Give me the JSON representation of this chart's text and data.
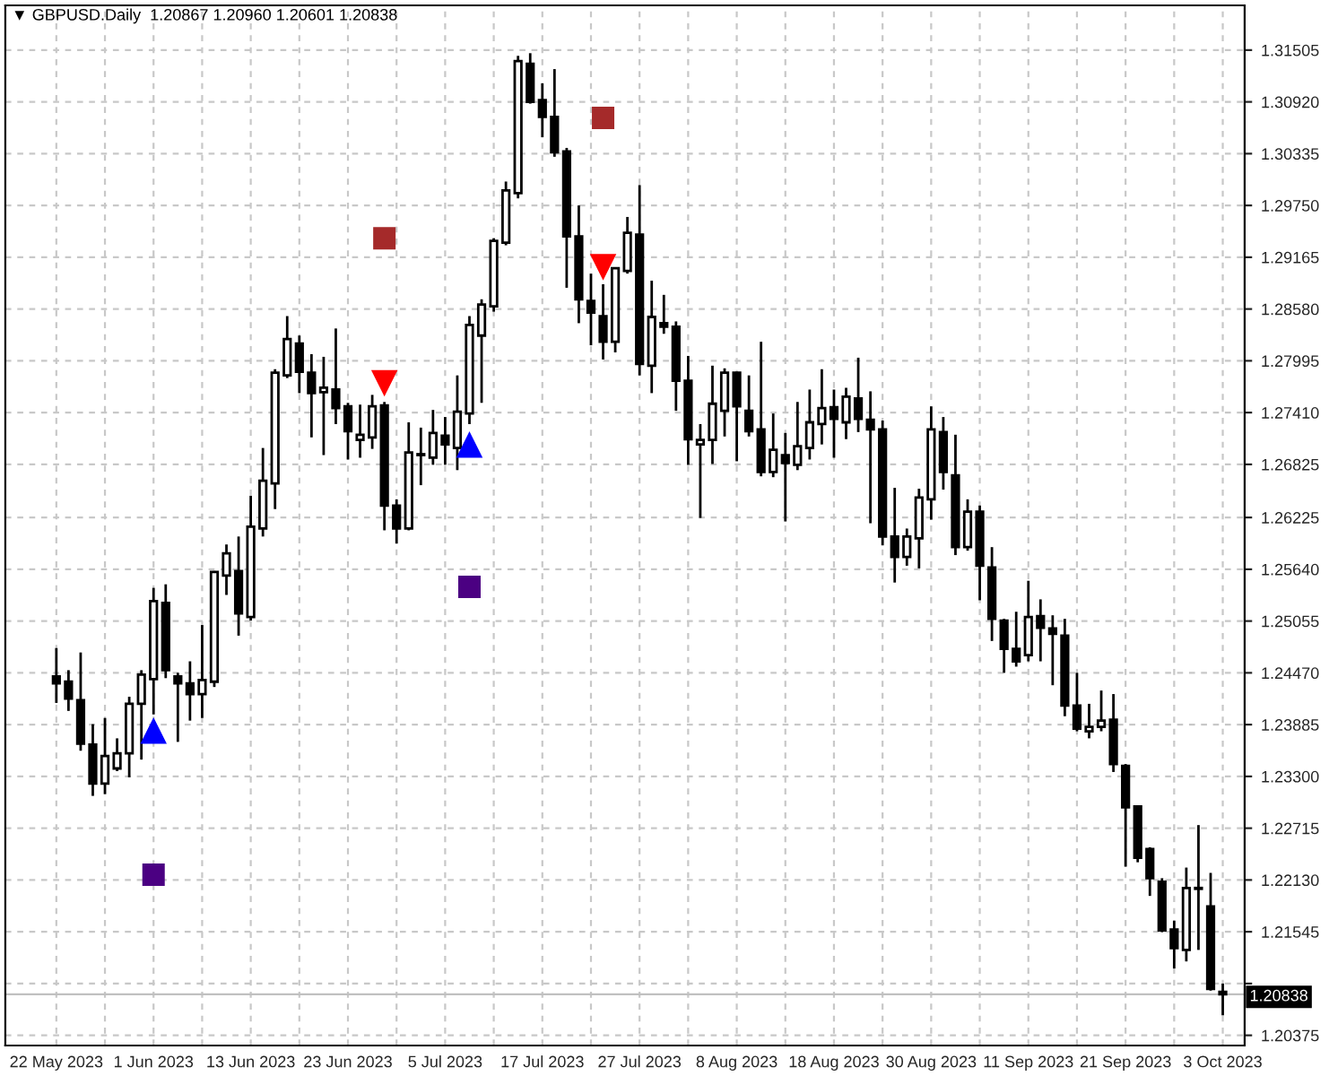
{
  "chart_data": {
    "type": "candlestick",
    "title": "▼ GBPUSD.Daily  1.20867 1.20960 1.20601 1.20838",
    "categories": [
      "22 May 2023",
      null,
      null,
      null,
      null,
      null,
      null,
      null,
      "1 Jun 2023",
      null,
      null,
      null,
      null,
      null,
      null,
      null,
      "13 Jun 2023",
      null,
      null,
      null,
      null,
      null,
      null,
      null,
      "23 Jun 2023",
      null,
      null,
      null,
      null,
      null,
      null,
      null,
      "5 Jul 2023",
      null,
      null,
      null,
      null,
      null,
      null,
      null,
      "17 Jul 2023",
      null,
      null,
      null,
      null,
      null,
      null,
      null,
      "27 Jul 2023",
      null,
      null,
      null,
      null,
      null,
      null,
      null,
      "8 Aug 2023",
      null,
      null,
      null,
      null,
      null,
      null,
      null,
      "18 Aug 2023",
      null,
      null,
      null,
      null,
      null,
      null,
      null,
      "30 Aug 2023",
      null,
      null,
      null,
      null,
      null,
      null,
      null,
      "11 Sep 2023",
      null,
      null,
      null,
      null,
      null,
      null,
      null,
      "21 Sep 2023",
      null,
      null,
      null,
      null,
      null,
      null,
      null,
      "3 Oct 2023"
    ],
    "ohlc": [
      [
        1.2443,
        1.2475,
        1.2413,
        1.2435
      ],
      [
        1.2437,
        1.245,
        1.2404,
        1.2418
      ],
      [
        1.2416,
        1.247,
        1.2359,
        1.2367
      ],
      [
        1.2366,
        1.2389,
        1.2308,
        1.2322
      ],
      [
        1.2322,
        1.2396,
        1.231,
        1.2353
      ],
      [
        1.2339,
        1.2373,
        1.2336,
        1.2356
      ],
      [
        1.2356,
        1.242,
        1.2329,
        1.2412
      ],
      [
        1.2412,
        1.245,
        1.2349,
        1.2445
      ],
      [
        1.244,
        1.2543,
        1.24,
        1.2528
      ],
      [
        1.2526,
        1.2547,
        1.2441,
        1.245
      ],
      [
        1.2443,
        1.2447,
        1.2369,
        1.2435
      ],
      [
        1.2435,
        1.246,
        1.2393,
        1.2423
      ],
      [
        1.2423,
        1.2501,
        1.2396,
        1.2439
      ],
      [
        1.2437,
        1.2562,
        1.2431,
        1.2561
      ],
      [
        1.2557,
        1.2592,
        1.2535,
        1.2582
      ],
      [
        1.2562,
        1.2601,
        1.2489,
        1.2514
      ],
      [
        1.251,
        1.2647,
        1.2506,
        1.2612
      ],
      [
        1.261,
        1.2701,
        1.2601,
        1.2664
      ],
      [
        1.2661,
        1.279,
        1.2632,
        1.2786
      ],
      [
        1.2783,
        1.285,
        1.278,
        1.2824
      ],
      [
        1.2819,
        1.2828,
        1.2763,
        1.2787
      ],
      [
        1.2786,
        1.2807,
        1.2713,
        1.2763
      ],
      [
        1.2764,
        1.2804,
        1.2693,
        1.2769
      ],
      [
        1.2767,
        1.2836,
        1.2728,
        1.2746
      ],
      [
        1.2748,
        1.2752,
        1.2688,
        1.272
      ],
      [
        1.271,
        1.275,
        1.269,
        1.2716
      ],
      [
        1.2713,
        1.2761,
        1.27,
        1.2748
      ],
      [
        1.2749,
        1.2753,
        1.2608,
        1.2636
      ],
      [
        1.2636,
        1.2643,
        1.2593,
        1.261
      ],
      [
        1.261,
        1.273,
        1.2608,
        1.2696
      ],
      [
        1.2693,
        1.2724,
        1.2659,
        1.2694
      ],
      [
        1.269,
        1.2744,
        1.2682,
        1.2718
      ],
      [
        1.2715,
        1.2736,
        1.2682,
        1.2705
      ],
      [
        1.2701,
        1.2783,
        1.2676,
        1.2742
      ],
      [
        1.274,
        1.285,
        1.2728,
        1.284
      ],
      [
        1.2828,
        1.2869,
        1.2752,
        1.2863
      ],
      [
        1.2861,
        1.2938,
        1.2855,
        1.2935
      ],
      [
        1.2933,
        1.3002,
        1.293,
        1.2992
      ],
      [
        1.2989,
        1.3144,
        1.2983,
        1.3138
      ],
      [
        1.3135,
        1.3147,
        1.309,
        1.3092
      ],
      [
        1.3094,
        1.3113,
        1.3052,
        1.3075
      ],
      [
        1.3075,
        1.3129,
        1.303,
        1.3035
      ],
      [
        1.3036,
        1.304,
        1.2882,
        1.294
      ],
      [
        1.294,
        1.2975,
        1.2842,
        1.2869
      ],
      [
        1.2867,
        1.2898,
        1.2817,
        1.2854
      ],
      [
        1.285,
        1.2886,
        1.2801,
        1.2821
      ],
      [
        1.2821,
        1.2905,
        1.2809,
        1.2904
      ],
      [
        1.2901,
        1.2962,
        1.2898,
        1.2944
      ],
      [
        1.2942,
        1.2998,
        1.2783,
        1.2796
      ],
      [
        1.2794,
        1.289,
        1.2763,
        1.2849
      ],
      [
        1.2842,
        1.2874,
        1.283,
        1.2838
      ],
      [
        1.2838,
        1.2844,
        1.2743,
        1.2777
      ],
      [
        1.2777,
        1.2805,
        1.2682,
        1.2711
      ],
      [
        1.2705,
        1.2728,
        1.2622,
        1.271
      ],
      [
        1.271,
        1.2794,
        1.2683,
        1.2751
      ],
      [
        1.2743,
        1.2791,
        1.2714,
        1.2786
      ],
      [
        1.2786,
        1.2787,
        1.2686,
        1.2748
      ],
      [
        1.2743,
        1.2783,
        1.2714,
        1.272
      ],
      [
        1.2722,
        1.2821,
        1.2669,
        1.2674
      ],
      [
        1.2674,
        1.274,
        1.2668,
        1.2699
      ],
      [
        1.2693,
        1.2718,
        1.2618,
        1.2684
      ],
      [
        1.2682,
        1.2753,
        1.2676,
        1.2703
      ],
      [
        1.2701,
        1.2767,
        1.2688,
        1.273
      ],
      [
        1.2728,
        1.279,
        1.2705,
        1.2746
      ],
      [
        1.2747,
        1.2767,
        1.269,
        1.2734
      ],
      [
        1.273,
        1.2769,
        1.2711,
        1.2759
      ],
      [
        1.2757,
        1.2803,
        1.2719,
        1.2734
      ],
      [
        1.2733,
        1.2765,
        1.2616,
        1.2722
      ],
      [
        1.2722,
        1.2732,
        1.2591,
        1.2601
      ],
      [
        1.2601,
        1.2656,
        1.2549,
        1.2578
      ],
      [
        1.2578,
        1.261,
        1.2568,
        1.2601
      ],
      [
        1.2599,
        1.2655,
        1.2565,
        1.2645
      ],
      [
        1.2643,
        1.2748,
        1.262,
        1.2722
      ],
      [
        1.2719,
        1.2736,
        1.2654,
        1.2674
      ],
      [
        1.267,
        1.2716,
        1.258,
        1.2589
      ],
      [
        1.2589,
        1.2643,
        1.2585,
        1.2629
      ],
      [
        1.2629,
        1.2636,
        1.2529,
        1.2568
      ],
      [
        1.2566,
        1.2589,
        1.2483,
        1.2508
      ],
      [
        1.2506,
        1.2508,
        1.2447,
        1.2474
      ],
      [
        1.2474,
        1.2516,
        1.2454,
        1.246
      ],
      [
        1.2467,
        1.2551,
        1.246,
        1.251
      ],
      [
        1.2511,
        1.253,
        1.246,
        1.2498
      ],
      [
        1.2497,
        1.2512,
        1.2433,
        1.2491
      ],
      [
        1.2489,
        1.2508,
        1.2398,
        1.241
      ],
      [
        1.241,
        1.2447,
        1.2381,
        1.2384
      ],
      [
        1.2381,
        1.2412,
        1.2373,
        1.2386
      ],
      [
        1.2386,
        1.2427,
        1.2381,
        1.2393
      ],
      [
        1.2394,
        1.2423,
        1.2335,
        1.2344
      ],
      [
        1.2342,
        1.2344,
        1.2228,
        1.2295
      ],
      [
        1.2296,
        1.2297,
        1.2233,
        1.2238
      ],
      [
        1.2248,
        1.225,
        1.2195,
        1.2215
      ],
      [
        1.2211,
        1.2215,
        1.2154,
        1.2156
      ],
      [
        1.2157,
        1.2167,
        1.2113,
        1.2136
      ],
      [
        1.2134,
        1.2227,
        1.2121,
        1.2204
      ],
      [
        1.2203,
        1.2275,
        1.2134,
        1.2204
      ],
      [
        1.2183,
        1.2221,
        1.2088,
        1.209
      ],
      [
        1.20867,
        1.2096,
        1.20601,
        1.20838
      ]
    ],
    "series": [
      {
        "type": "scatter",
        "marker": "triangle",
        "color": "#0000ff",
        "values": [
          null,
          null,
          null,
          null,
          null,
          null,
          null,
          null,
          1.2381,
          null,
          null,
          null,
          null,
          null,
          null,
          null,
          null,
          null,
          null,
          null,
          null,
          null,
          null,
          null,
          null,
          null,
          null,
          null,
          null,
          null,
          null,
          null,
          null,
          null,
          1.2704,
          null,
          null,
          null,
          null,
          null,
          null,
          null,
          null,
          null,
          null,
          null,
          null,
          null,
          null,
          null,
          null,
          null,
          null,
          null,
          null,
          null,
          null,
          null,
          null,
          null,
          null,
          null,
          null,
          null,
          null,
          null,
          null,
          null,
          null,
          null,
          null,
          null,
          null,
          null,
          null,
          null,
          null,
          null,
          null,
          null,
          null,
          null,
          null,
          null,
          null,
          null,
          null,
          null,
          null,
          null,
          null,
          null,
          null,
          null,
          null,
          null,
          null
        ]
      },
      {
        "type": "scatter",
        "marker": "triangle",
        "color": "#ff0000",
        "values": [
          null,
          null,
          null,
          null,
          null,
          null,
          null,
          null,
          null,
          null,
          null,
          null,
          null,
          null,
          null,
          null,
          null,
          null,
          null,
          null,
          null,
          null,
          null,
          null,
          null,
          null,
          null,
          1.2775,
          null,
          null,
          null,
          null,
          null,
          null,
          null,
          null,
          null,
          null,
          null,
          null,
          null,
          null,
          null,
          null,
          null,
          1.2906,
          null,
          null,
          null,
          null,
          null,
          null,
          null,
          null,
          null,
          null,
          null,
          null,
          null,
          null,
          null,
          null,
          null,
          null,
          null,
          null,
          null,
          null,
          null,
          null,
          null,
          null,
          null,
          null,
          null,
          null,
          null,
          null,
          null,
          null,
          null,
          null,
          null,
          null,
          null,
          null,
          null,
          null,
          null,
          null,
          null,
          null,
          null,
          null,
          null,
          null,
          null
        ]
      },
      {
        "type": "scatter",
        "marker": "square",
        "color": "#4b0082",
        "values": [
          null,
          null,
          null,
          null,
          null,
          null,
          null,
          null,
          1.2219,
          null,
          null,
          null,
          null,
          null,
          null,
          null,
          null,
          null,
          null,
          null,
          null,
          null,
          null,
          null,
          null,
          null,
          null,
          null,
          null,
          null,
          null,
          null,
          null,
          null,
          1.2544,
          null,
          null,
          null,
          null,
          null,
          null,
          null,
          null,
          null,
          null,
          null,
          null,
          null,
          null,
          null,
          null,
          null,
          null,
          null,
          null,
          null,
          null,
          null,
          null,
          null,
          null,
          null,
          null,
          null,
          null,
          null,
          null,
          null,
          null,
          null,
          null,
          null,
          null,
          null,
          null,
          null,
          null,
          null,
          null,
          null,
          null,
          null,
          null,
          null,
          null,
          null,
          null,
          null,
          null,
          null,
          null,
          null,
          null,
          null,
          null,
          null,
          null
        ]
      },
      {
        "type": "scatter",
        "marker": "square",
        "color": "#a52a2a",
        "values": [
          null,
          null,
          null,
          null,
          null,
          null,
          null,
          null,
          null,
          null,
          null,
          null,
          null,
          null,
          null,
          null,
          null,
          null,
          null,
          null,
          null,
          null,
          null,
          null,
          null,
          null,
          null,
          1.2938,
          null,
          null,
          null,
          null,
          null,
          null,
          null,
          null,
          null,
          null,
          null,
          null,
          null,
          null,
          null,
          null,
          null,
          1.3074,
          null,
          null,
          null,
          null,
          null,
          null,
          null,
          null,
          null,
          null,
          null,
          null,
          null,
          null,
          null,
          null,
          null,
          null,
          null,
          null,
          null,
          null,
          null,
          null,
          null,
          null,
          null,
          null,
          null,
          null,
          null,
          null,
          null,
          null,
          null,
          null,
          null,
          null,
          null,
          null,
          null,
          null,
          null,
          null,
          null,
          null,
          null,
          null,
          null,
          null,
          null
        ]
      }
    ],
    "ylim": [
      1.2026,
      1.3201
    ],
    "yticks": [
      {
        "value": 1.31505,
        "label": "1.31505"
      },
      {
        "value": 1.3092,
        "label": "1.30920"
      },
      {
        "value": 1.30335,
        "label": "1.30335"
      },
      {
        "value": 1.2975,
        "label": "1.29750"
      },
      {
        "value": 1.29165,
        "label": "1.29165"
      },
      {
        "value": 1.2858,
        "label": "1.28580"
      },
      {
        "value": 1.27995,
        "label": "1.27995"
      },
      {
        "value": 1.2741,
        "label": "1.27410"
      },
      {
        "value": 1.26825,
        "label": "1.26825"
      },
      {
        "value": 1.26225,
        "label": "1.26225"
      },
      {
        "value": 1.2564,
        "label": "1.25640"
      },
      {
        "value": 1.25055,
        "label": "1.25055"
      },
      {
        "value": 1.2447,
        "label": "1.24470"
      },
      {
        "value": 1.23885,
        "label": "1.23885"
      },
      {
        "value": 1.233,
        "label": "1.23300"
      },
      {
        "value": 1.22715,
        "label": "1.22715"
      },
      {
        "value": 1.2213,
        "label": "1.22130"
      },
      {
        "value": 1.21545,
        "label": "1.21545"
      },
      {
        "value": 1.2096,
        "label": null
      },
      {
        "value": 1.20375,
        "label": "1.20375"
      }
    ],
    "ref_lines": [
      {
        "axis": "y",
        "value": 1.20838,
        "label": "1.20838",
        "color": "#c0c0c0"
      }
    ],
    "grid": true
  }
}
